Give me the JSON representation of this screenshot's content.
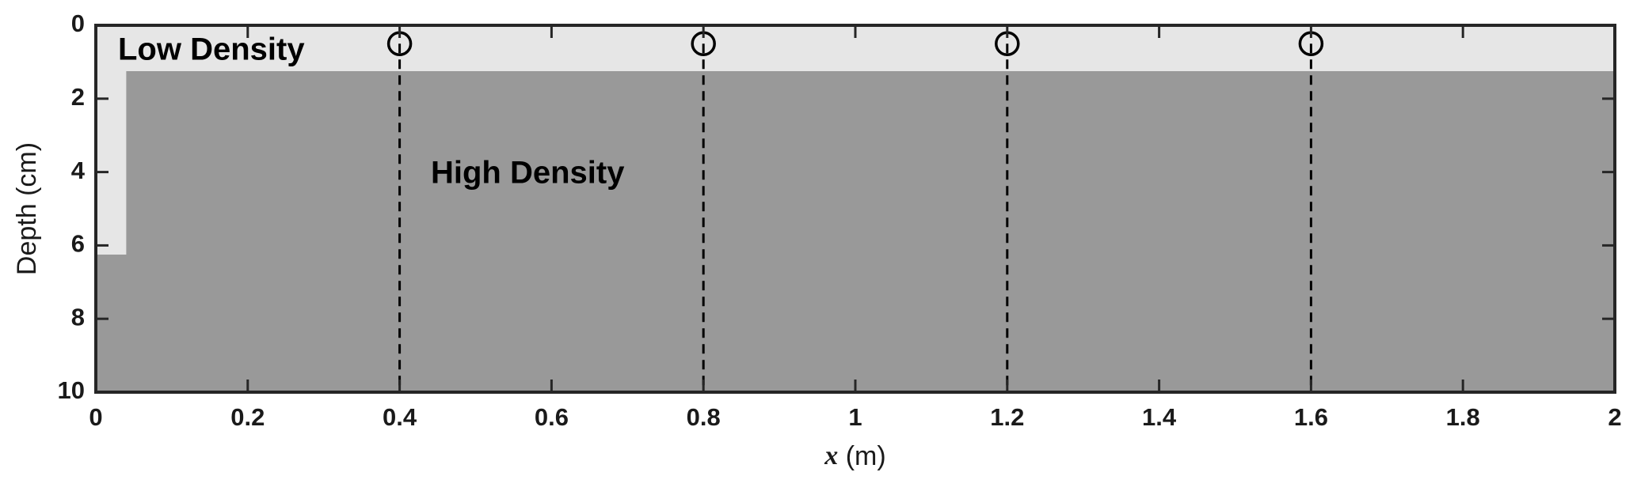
{
  "chart_data": {
    "type": "section",
    "ylabel": "Depth (cm)",
    "xlabel_symbol": "x",
    "xlabel_unit": "(m)",
    "xlim": [
      0,
      2
    ],
    "ylim": [
      0,
      10
    ],
    "y_inverted": true,
    "xticks": [
      0,
      0.2,
      0.4,
      0.6,
      0.8,
      1,
      1.2,
      1.4,
      1.6,
      1.8,
      2
    ],
    "yticks": [
      0,
      2,
      4,
      6,
      8,
      10
    ],
    "regions": [
      {
        "name": "Low Density",
        "color": "#e6e6e6",
        "x": [
          0,
          2,
          2,
          0.04,
          0.04,
          0
        ],
        "y": [
          0,
          0,
          1.25,
          1.25,
          6.25,
          6.25
        ]
      },
      {
        "name": "High Density",
        "color": "#999999",
        "x": [
          0,
          0.04,
          0.04,
          2,
          2,
          0
        ],
        "y": [
          6.25,
          6.25,
          1.25,
          1.25,
          10,
          10
        ]
      }
    ],
    "sensors": {
      "x": [
        0.4,
        0.8,
        1.2,
        1.6
      ],
      "depth": [
        0.5,
        0.5,
        0.5,
        0.5
      ]
    }
  }
}
